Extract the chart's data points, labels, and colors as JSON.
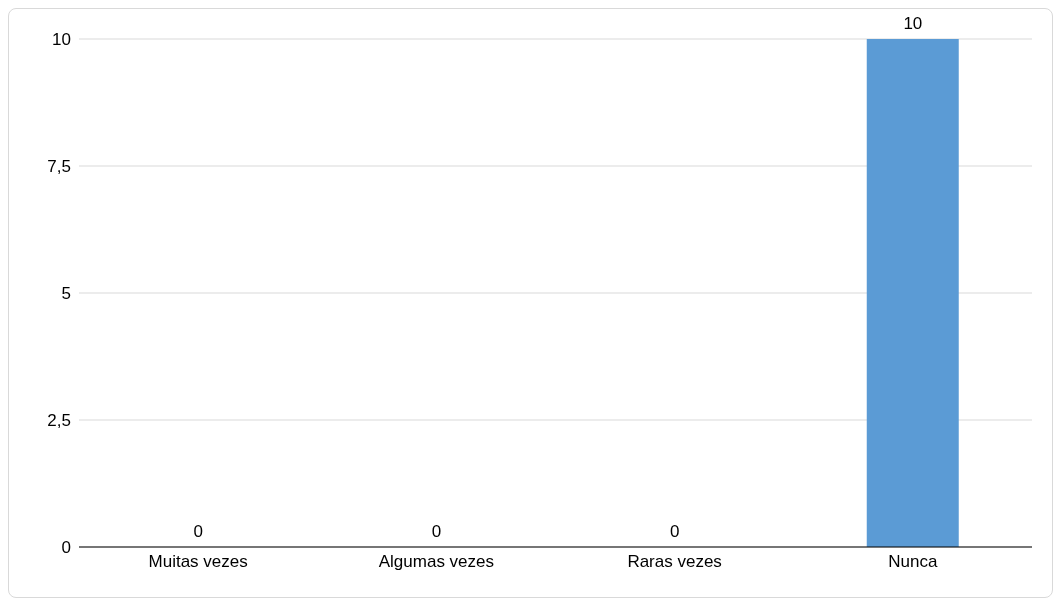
{
  "chart_data": {
    "type": "bar",
    "categories": [
      "Muitas vezes",
      "Algumas vezes",
      "Raras vezes",
      "Nunca"
    ],
    "values": [
      0,
      0,
      0,
      10
    ],
    "color": "#5b9bd5",
    "ylim": [
      0,
      10
    ],
    "yticks": [
      0,
      {
        "value": 2.5,
        "label": "2,5"
      },
      5,
      {
        "value": 7.5,
        "label": "7,5"
      },
      10
    ],
    "grid": "y",
    "data_labels": true
  }
}
